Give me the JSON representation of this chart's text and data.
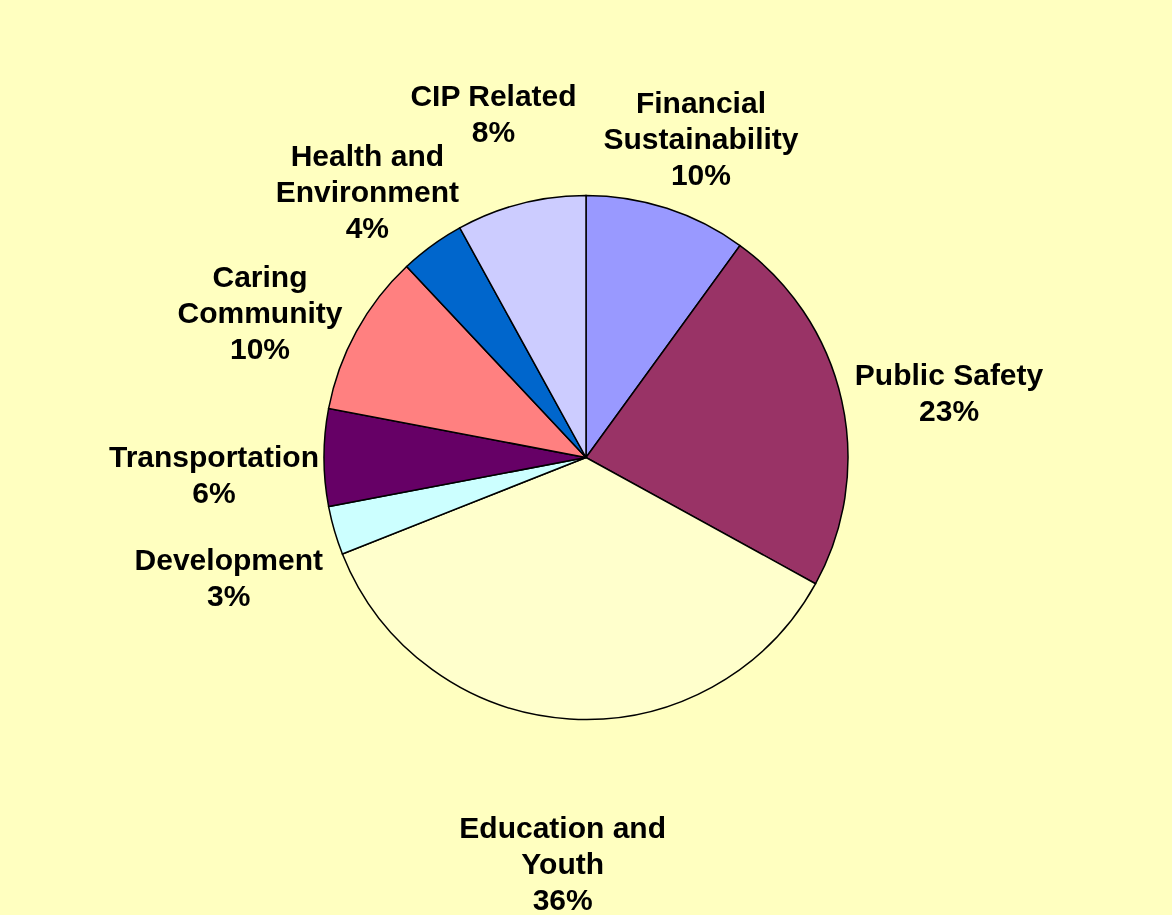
{
  "chart_data": {
    "type": "pie",
    "categories": [
      "Financial Sustainability",
      "Public Safety",
      "Education and Youth",
      "Development",
      "Transportation",
      "Caring Community",
      "Health and Environment",
      "CIP Related"
    ],
    "values": [
      10,
      23,
      36,
      3,
      6,
      10,
      4,
      8
    ],
    "value_labels": [
      "10%",
      "23%",
      "36%",
      "3%",
      "6%",
      "10%",
      "4%",
      "8%"
    ],
    "colors": [
      "#9999ff",
      "#993366",
      "#ffffcc",
      "#ccffff",
      "#660066",
      "#ff8080",
      "#0066cc",
      "#ccccff"
    ]
  }
}
